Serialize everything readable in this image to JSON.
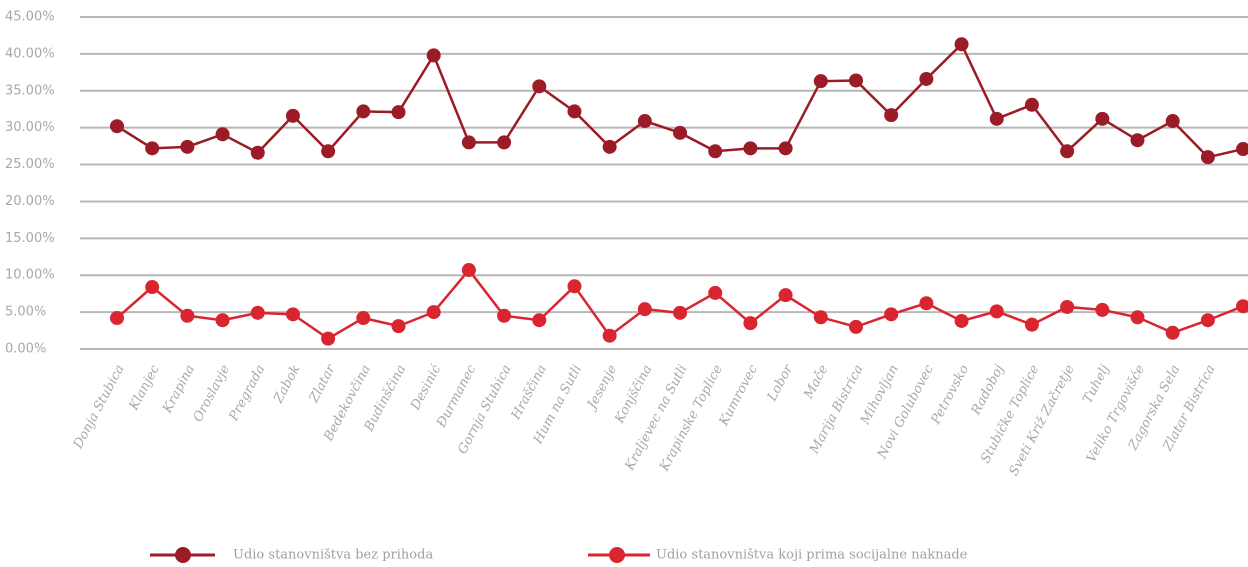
{
  "chart_data": {
    "type": "line",
    "categories": [
      "Donja Stubica",
      "Klanjec",
      "Krapina",
      "Oroslavje",
      "Pregrada",
      "Zabok",
      "Zlatar",
      "Bedekovčina",
      "Budinščina",
      "Desinić",
      "Đurmanec",
      "Gornja Stubica",
      "Hraščina",
      "Hum na Sutli",
      "Jesenje",
      "Konjščina",
      "Kraljevec na Sutli",
      "Krapinske Toplice",
      "Kumrovec",
      "Lobor",
      "Mače",
      "Marija Bistrica",
      "Mihovljan",
      "Novi Golubovec",
      "Petrovsko",
      "Radoboj",
      "Stubičke Toplice",
      "Sveti Križ Začretje",
      "Tuhelj",
      "Veliko Trgovišće",
      "Zagorska Sela",
      "Zlatar Bistrica",
      null
    ],
    "series": [
      {
        "name": "Udio stanovništva bez prihoda",
        "color": "#9b1b26",
        "values": [
          30.2,
          27.2,
          27.4,
          29.1,
          26.6,
          31.6,
          26.8,
          32.2,
          32.1,
          39.8,
          28.0,
          28.0,
          35.6,
          32.2,
          27.4,
          30.9,
          29.3,
          26.8,
          27.2,
          27.2,
          36.3,
          36.4,
          31.7,
          36.6,
          41.3,
          31.2,
          33.1,
          26.8,
          31.2,
          28.3,
          30.9,
          26.0,
          27.1
        ]
      },
      {
        "name": "Udio stanovništva koji prima socijalne naknade",
        "color": "#d9252f",
        "values": [
          4.2,
          8.4,
          4.5,
          3.9,
          4.9,
          4.7,
          1.4,
          4.2,
          3.1,
          5.0,
          10.7,
          4.5,
          3.9,
          8.5,
          1.8,
          5.4,
          4.9,
          7.6,
          3.5,
          7.3,
          4.3,
          3.0,
          4.7,
          6.2,
          3.8,
          5.1,
          3.3,
          5.7,
          5.3,
          4.3,
          2.2,
          3.9,
          5.8
        ]
      }
    ],
    "ylim": [
      0,
      45
    ],
    "yticks": [
      {
        "value": 0,
        "label": "0.00%"
      },
      {
        "value": 5,
        "label": "5.00%"
      },
      {
        "value": 10,
        "label": "10.00%"
      },
      {
        "value": 15,
        "label": "15.00%"
      },
      {
        "value": 20,
        "label": "20.00%"
      },
      {
        "value": 25,
        "label": "25.00%"
      },
      {
        "value": 30,
        "label": "30.00%"
      },
      {
        "value": 35,
        "label": "35.00%"
      },
      {
        "value": 40,
        "label": "40.00%"
      },
      {
        "value": 45,
        "label": "45.00%"
      }
    ],
    "grid": true
  }
}
